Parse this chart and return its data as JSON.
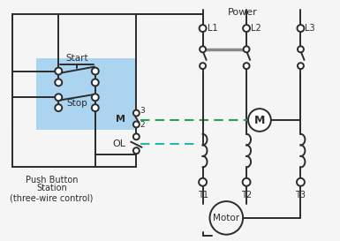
{
  "bg_color": "#f5f5f5",
  "line_color": "#2c2c2c",
  "blue_bg": "#aad4f0",
  "green_dash": "#2a9d5c",
  "teal_dash": "#2ab5b5",
  "gray_line": "#888888",
  "power_label": "Power",
  "l_labels": [
    "L1",
    "L2",
    "L3"
  ],
  "t_labels": [
    "T1",
    "T2",
    "T3"
  ],
  "motor_label": "Motor",
  "m_label": "M",
  "ol_label": "OL",
  "start_label": "Start",
  "stop_label": "Stop",
  "pb_label1": "Push Button",
  "pb_label2": "Station",
  "pb_label3": "(three-wire control)"
}
